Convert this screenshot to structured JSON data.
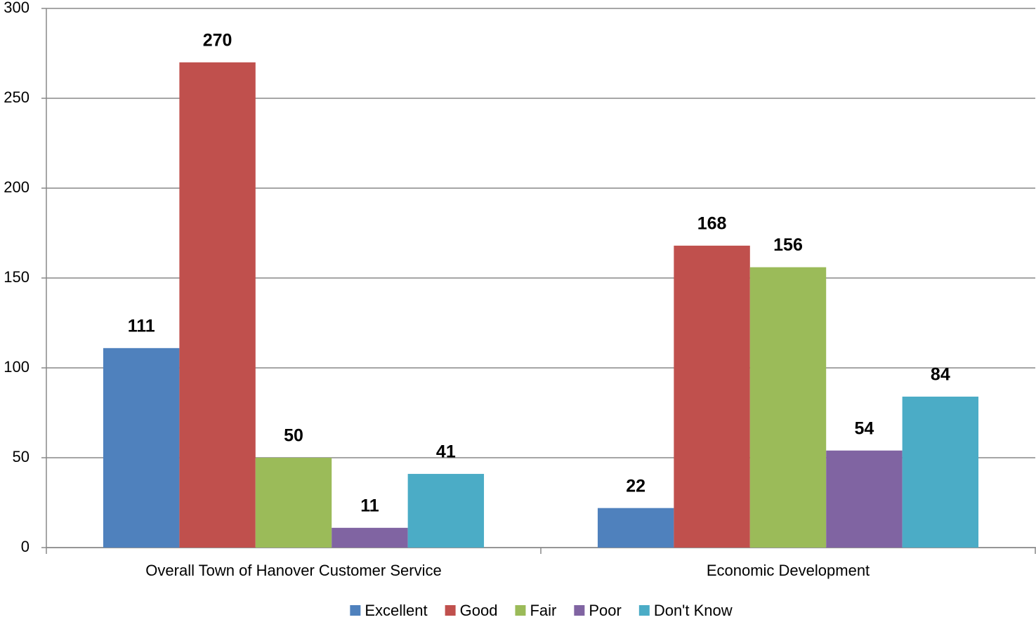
{
  "chart_data": {
    "type": "bar",
    "categories": [
      "Overall Town of Hanover Customer Service",
      "Economic Development"
    ],
    "series": [
      {
        "name": "Excellent",
        "color": "#4f81bd",
        "values": [
          111,
          22
        ]
      },
      {
        "name": "Good",
        "color": "#c0504d",
        "values": [
          270,
          168
        ]
      },
      {
        "name": "Fair",
        "color": "#9bbb59",
        "values": [
          50,
          156
        ]
      },
      {
        "name": "Poor",
        "color": "#8064a2",
        "values": [
          11,
          54
        ]
      },
      {
        "name": "Don't Know",
        "color": "#4bacc6",
        "values": [
          41,
          84
        ]
      }
    ],
    "ylim": [
      0,
      300
    ],
    "yticks": [
      0,
      50,
      100,
      150,
      200,
      250,
      300
    ],
    "grid": true,
    "legend": "bottom"
  }
}
